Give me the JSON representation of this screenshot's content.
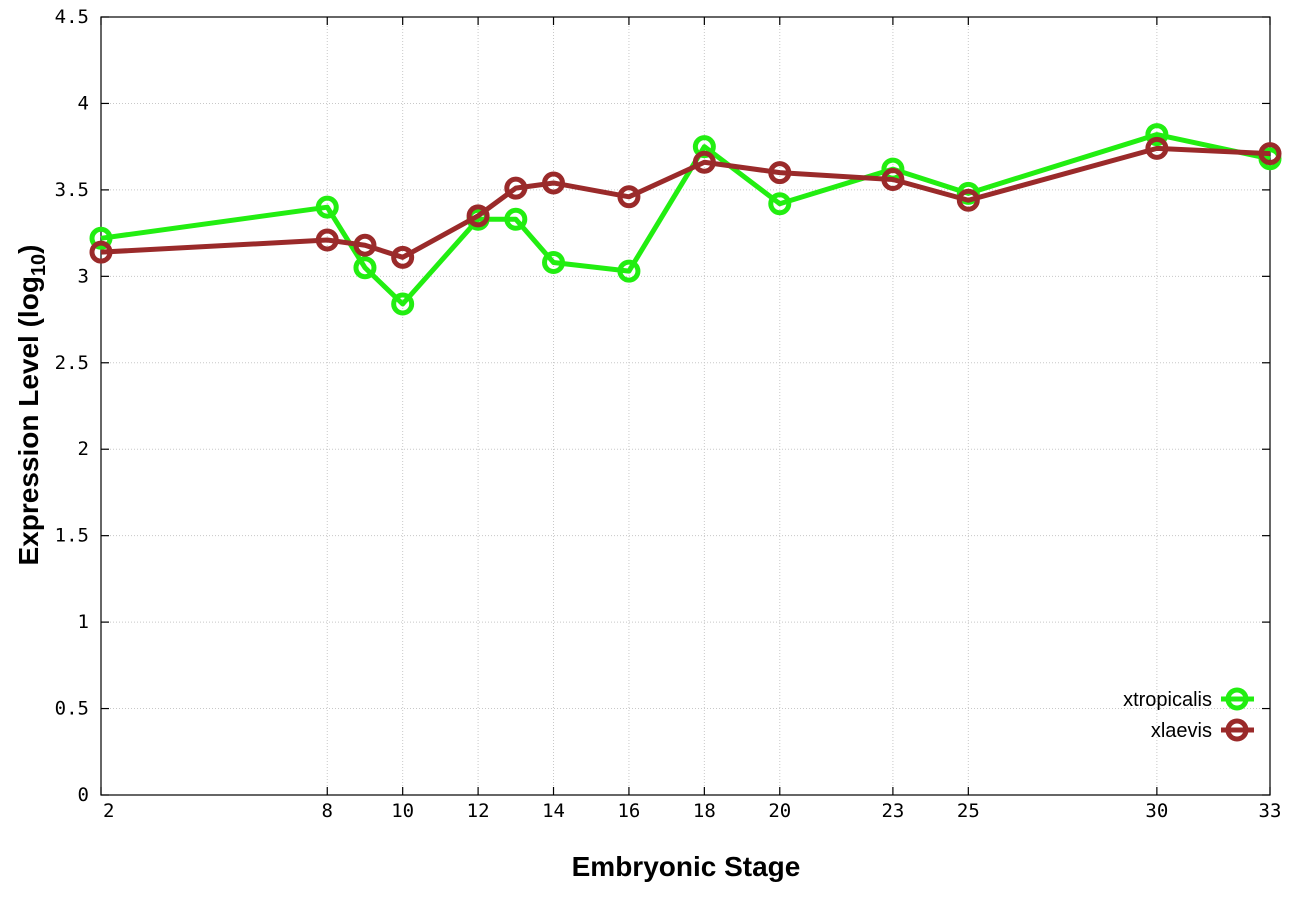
{
  "chart_data": {
    "type": "line",
    "xlabel": "Embryonic Stage",
    "ylabel_main": "Expression Level (log",
    "ylabel_sub": "10",
    "ylabel_close": ")",
    "xlim": [
      2,
      33
    ],
    "ylim": [
      0,
      4.5
    ],
    "x_ticks": [
      2,
      8,
      10,
      12,
      14,
      16,
      18,
      20,
      23,
      25,
      30,
      33
    ],
    "y_ticks": [
      "0",
      "0.5",
      "1",
      "1.5",
      "2",
      "2.5",
      "3",
      "3.5",
      "4",
      "4.5"
    ],
    "grid": true,
    "legend_position": "bottom-right",
    "x": [
      2,
      8,
      9,
      10,
      12,
      13,
      14,
      16,
      18,
      20,
      23,
      25,
      30,
      33
    ],
    "series": [
      {
        "name": "xtropicalis",
        "color": "#22ee11",
        "values": [
          3.22,
          3.4,
          3.05,
          2.84,
          3.33,
          3.33,
          3.08,
          3.03,
          3.75,
          3.42,
          3.62,
          3.48,
          3.82,
          3.68
        ]
      },
      {
        "name": "xlaevis",
        "color": "#9a2a2a",
        "values": [
          3.14,
          3.21,
          3.18,
          3.11,
          3.35,
          3.51,
          3.54,
          3.46,
          3.66,
          3.6,
          3.56,
          3.44,
          3.74,
          3.71
        ]
      }
    ]
  }
}
